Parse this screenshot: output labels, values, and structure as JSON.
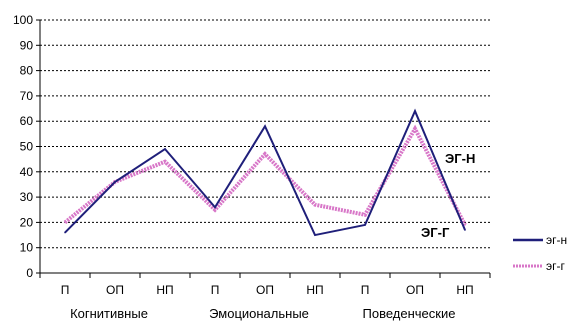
{
  "chart_data": {
    "type": "line",
    "title": "",
    "xlabel": "",
    "ylabel": "",
    "ylim": [
      0,
      100
    ],
    "y_ticks": [
      "0",
      "10",
      "20",
      "30",
      "40",
      "50",
      "60",
      "70",
      "80",
      "90",
      "100"
    ],
    "categories": [
      "П",
      "ОП",
      "НП",
      "П",
      "ОП",
      "НП",
      "П",
      "ОП",
      "НП"
    ],
    "groups": [
      "Когнитивные",
      "Эмоциональные",
      "Поведенческие"
    ],
    "grid": "horizontal dashed",
    "legend_position": "right",
    "series": [
      {
        "name": "эг-н",
        "color": "#1f1f7a",
        "values": [
          16,
          36,
          49,
          26,
          58,
          15,
          19,
          64,
          17
        ]
      },
      {
        "name": "эг-г",
        "color": "#d877c8",
        "values": [
          20,
          36,
          44,
          25,
          47,
          27,
          23,
          57,
          19
        ]
      }
    ],
    "annotations": [
      "ЭГ-Н",
      "ЭГ-Г"
    ]
  }
}
